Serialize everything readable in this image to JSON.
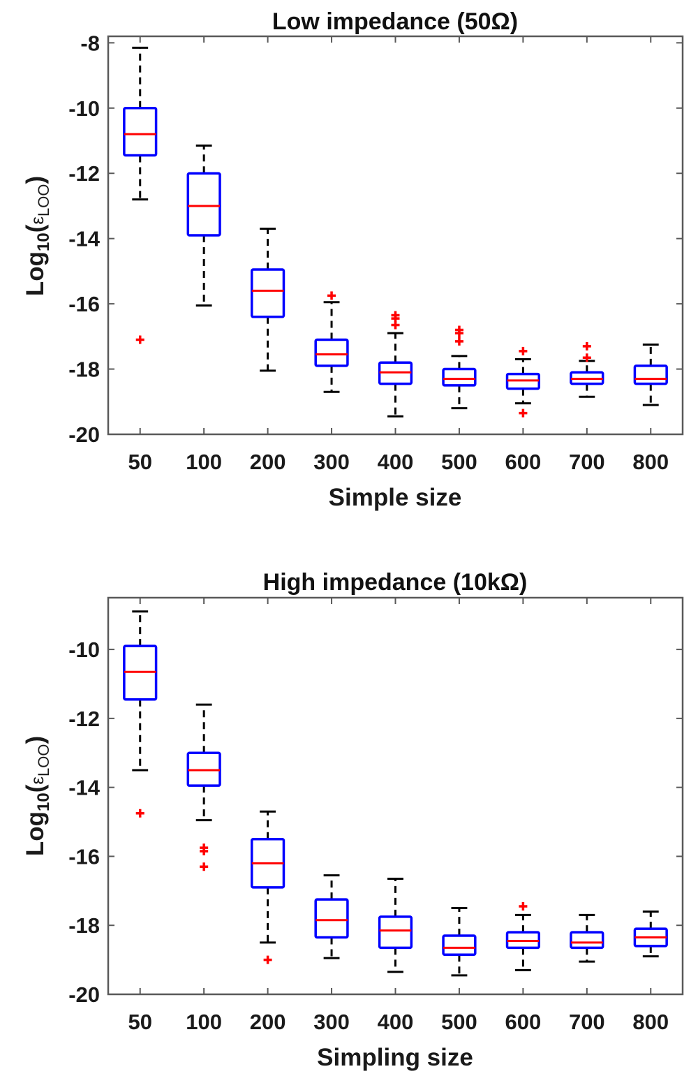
{
  "colors": {
    "box": "#0000ff",
    "median": "#ff0000",
    "whisker": "#000000",
    "outlier": "#ff0000",
    "axes": "#595959"
  },
  "chart_data": [
    {
      "type": "boxplot",
      "title": "Low impedance (50Ω)",
      "xlabel": "Simple size",
      "ylabel": {
        "base": "Log",
        "base_sub": "10",
        "open": "(",
        "eps": "ε",
        "eps_sub": "LOO",
        "close": ")"
      },
      "ylim": [
        -20,
        -7.8
      ],
      "yticks": [
        -20,
        -18,
        -16,
        -14,
        -12,
        -10,
        -8
      ],
      "ytick_labels": [
        "-20",
        "-18",
        "-16",
        "-14",
        "-12",
        "-10",
        "-8"
      ],
      "categories": [
        "50",
        "100",
        "200",
        "300",
        "400",
        "500",
        "600",
        "700",
        "800"
      ],
      "boxes": [
        {
          "whisker_low": -12.8,
          "q1": -11.45,
          "median": -10.8,
          "q3": -10.0,
          "whisker_high": -8.15,
          "outliers": [
            -17.1
          ]
        },
        {
          "whisker_low": -16.05,
          "q1": -13.9,
          "median": -13.0,
          "q3": -12.0,
          "whisker_high": -11.15,
          "outliers": []
        },
        {
          "whisker_low": -18.05,
          "q1": -16.4,
          "median": -15.6,
          "q3": -14.95,
          "whisker_high": -13.7,
          "outliers": []
        },
        {
          "whisker_low": -18.7,
          "q1": -17.9,
          "median": -17.55,
          "q3": -17.1,
          "whisker_high": -15.95,
          "outliers": [
            -15.75
          ]
        },
        {
          "whisker_low": -19.45,
          "q1": -18.45,
          "median": -18.1,
          "q3": -17.8,
          "whisker_high": -16.9,
          "outliers": [
            -16.35,
            -16.45,
            -16.65
          ]
        },
        {
          "whisker_low": -19.2,
          "q1": -18.5,
          "median": -18.3,
          "q3": -18.0,
          "whisker_high": -17.6,
          "outliers": [
            -16.8,
            -16.9,
            -17.15
          ]
        },
        {
          "whisker_low": -19.05,
          "q1": -18.6,
          "median": -18.35,
          "q3": -18.15,
          "whisker_high": -17.7,
          "outliers": [
            -17.45,
            -19.35
          ]
        },
        {
          "whisker_low": -18.85,
          "q1": -18.45,
          "median": -18.3,
          "q3": -18.1,
          "whisker_high": -17.75,
          "outliers": [
            -17.3,
            -17.65
          ]
        },
        {
          "whisker_low": -19.1,
          "q1": -18.45,
          "median": -18.3,
          "q3": -17.9,
          "whisker_high": -17.25,
          "outliers": []
        }
      ]
    },
    {
      "type": "boxplot",
      "title": "High impedance (10kΩ)",
      "xlabel": "Simpling size",
      "ylabel": {
        "base": "Log",
        "base_sub": "10",
        "open": "(",
        "eps": "ε",
        "eps_sub": "LOO",
        "close": ")"
      },
      "ylim": [
        -20,
        -8.5
      ],
      "yticks": [
        -20,
        -18,
        -16,
        -14,
        -12,
        -10
      ],
      "ytick_labels": [
        "-20",
        "-18",
        "-16",
        "-14",
        "-12",
        "-10"
      ],
      "categories": [
        "50",
        "100",
        "200",
        "300",
        "400",
        "500",
        "600",
        "700",
        "800"
      ],
      "boxes": [
        {
          "whisker_low": -13.5,
          "q1": -11.45,
          "median": -10.65,
          "q3": -9.9,
          "whisker_high": -8.9,
          "outliers": [
            -14.75
          ]
        },
        {
          "whisker_low": -14.95,
          "q1": -13.95,
          "median": -13.5,
          "q3": -13.0,
          "whisker_high": -11.6,
          "outliers": [
            -15.75,
            -15.85,
            -16.3
          ]
        },
        {
          "whisker_low": -18.5,
          "q1": -16.9,
          "median": -16.2,
          "q3": -15.5,
          "whisker_high": -14.7,
          "outliers": [
            -19.0
          ]
        },
        {
          "whisker_low": -18.95,
          "q1": -18.35,
          "median": -17.85,
          "q3": -17.25,
          "whisker_high": -16.55,
          "outliers": []
        },
        {
          "whisker_low": -19.35,
          "q1": -18.65,
          "median": -18.15,
          "q3": -17.75,
          "whisker_high": -16.65,
          "outliers": []
        },
        {
          "whisker_low": -19.45,
          "q1": -18.85,
          "median": -18.65,
          "q3": -18.3,
          "whisker_high": -17.5,
          "outliers": []
        },
        {
          "whisker_low": -19.3,
          "q1": -18.65,
          "median": -18.45,
          "q3": -18.2,
          "whisker_high": -17.7,
          "outliers": [
            -17.45
          ]
        },
        {
          "whisker_low": -19.05,
          "q1": -18.65,
          "median": -18.5,
          "q3": -18.2,
          "whisker_high": -17.7,
          "outliers": []
        },
        {
          "whisker_low": -18.9,
          "q1": -18.6,
          "median": -18.35,
          "q3": -18.1,
          "whisker_high": -17.6,
          "outliers": []
        }
      ]
    }
  ]
}
